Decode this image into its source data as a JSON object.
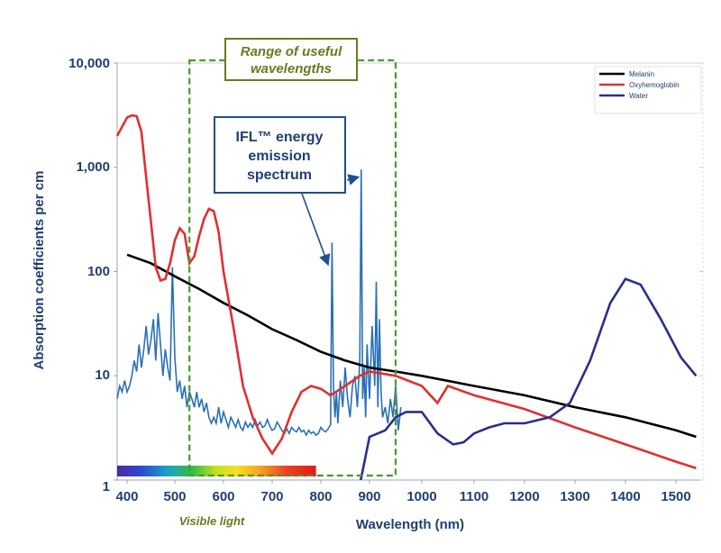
{
  "chart_data": {
    "type": "line",
    "title": "",
    "xlabel": "Wavelength (nm)",
    "ylabel": "Absorption coefficients per cm",
    "xlim": [
      380,
      1550
    ],
    "ylim": [
      1,
      10000
    ],
    "yscale": "log",
    "grid": false,
    "legend_position": "top-right",
    "x_ticks": [
      "400",
      "500",
      "600",
      "700",
      "800",
      "900",
      "1000",
      "1100",
      "1200",
      "1300",
      "1400",
      "1500"
    ],
    "y_ticks": [
      {
        "value": 1,
        "label": "1"
      },
      {
        "value": 10,
        "label": "10"
      },
      {
        "value": 100,
        "label": "100"
      },
      {
        "value": 1000,
        "label": "1,000"
      },
      {
        "value": 10000,
        "label": "10,000"
      }
    ],
    "series": [
      {
        "name": "Melanin",
        "color": "#000000",
        "x": [
          400,
          450,
          500,
          550,
          600,
          650,
          700,
          750,
          800,
          850,
          900,
          950,
          1000,
          1100,
          1200,
          1300,
          1400,
          1500,
          1540
        ],
        "y": [
          145,
          120,
          90,
          68,
          50,
          38,
          28,
          22,
          17,
          14,
          12,
          11,
          10,
          8,
          6.5,
          5,
          4,
          3,
          2.6
        ]
      },
      {
        "name": "Oxyhemoglobin",
        "color": "#e03030",
        "x": [
          380,
          400,
          410,
          420,
          430,
          440,
          450,
          460,
          470,
          480,
          490,
          500,
          510,
          520,
          530,
          540,
          550,
          560,
          570,
          580,
          590,
          600,
          620,
          640,
          660,
          680,
          700,
          720,
          740,
          760,
          780,
          800,
          820,
          850,
          880,
          900,
          950,
          1000,
          1030,
          1050,
          1100,
          1200,
          1300,
          1400,
          1500,
          1540
        ],
        "y": [
          2000,
          3000,
          3150,
          3100,
          2200,
          800,
          300,
          110,
          82,
          85,
          120,
          200,
          260,
          230,
          120,
          140,
          220,
          320,
          400,
          380,
          240,
          100,
          30,
          8,
          4,
          2.5,
          1.8,
          2.5,
          4.5,
          7,
          8,
          7.5,
          6.5,
          8,
          10,
          11,
          10,
          8,
          5.5,
          8,
          6.5,
          4.8,
          3.2,
          2.2,
          1.5,
          1.3
        ]
      },
      {
        "name": "Water",
        "color": "#2a2e8c",
        "x": [
          882,
          900,
          930,
          950,
          970,
          1000,
          1030,
          1060,
          1080,
          1100,
          1130,
          1160,
          1200,
          1250,
          1290,
          1330,
          1370,
          1400,
          1430,
          1470,
          1510,
          1540
        ],
        "y": [
          1.0,
          2.6,
          3.0,
          4.0,
          4.5,
          4.5,
          2.8,
          2.2,
          2.3,
          2.8,
          3.2,
          3.5,
          3.5,
          4.0,
          5.5,
          14,
          50,
          85,
          75,
          35,
          15,
          10
        ]
      },
      {
        "name": "IFL™ energy emission spectrum",
        "color": "#2a6fb8",
        "x": [
          380,
          385,
          390,
          395,
          400,
          405,
          410,
          415,
          420,
          425,
          430,
          435,
          440,
          445,
          450,
          455,
          460,
          465,
          470,
          475,
          480,
          485,
          490,
          495,
          500,
          505,
          510,
          515,
          520,
          525,
          530,
          535,
          540,
          545,
          550,
          555,
          560,
          565,
          570,
          575,
          580,
          585,
          590,
          595,
          600,
          605,
          610,
          615,
          620,
          625,
          630,
          635,
          640,
          645,
          650,
          655,
          660,
          665,
          670,
          675,
          680,
          685,
          690,
          695,
          700,
          705,
          710,
          715,
          720,
          725,
          730,
          735,
          740,
          745,
          750,
          755,
          760,
          765,
          770,
          775,
          780,
          785,
          790,
          795,
          800,
          805,
          810,
          815,
          820,
          823,
          826,
          829,
          832,
          835,
          840,
          845,
          850,
          855,
          860,
          865,
          870,
          875,
          880,
          883,
          886,
          889,
          892,
          895,
          900,
          905,
          910,
          913,
          916,
          919,
          922,
          925,
          930,
          935,
          940,
          945,
          950,
          955,
          960
        ],
        "y": [
          6,
          8,
          7,
          9,
          7,
          8,
          10,
          14,
          11,
          20,
          12,
          18,
          30,
          16,
          22,
          35,
          14,
          40,
          20,
          10,
          18,
          12,
          9,
          110,
          15,
          7,
          9,
          6,
          8,
          5,
          7,
          6,
          5,
          7,
          5,
          6,
          4.5,
          5.5,
          4,
          3.5,
          4,
          3.5,
          5,
          3.5,
          4.5,
          3.8,
          3.2,
          4,
          3.6,
          3.2,
          3.8,
          3.2,
          3,
          3.6,
          3.2,
          3.5,
          3.2,
          3.8,
          3.3,
          3.6,
          3.2,
          3.3,
          3.8,
          3.3,
          3,
          3.1,
          3.6,
          3.3,
          3,
          2.8,
          3.1,
          2.8,
          3.2,
          3,
          2.9,
          3.2,
          2.9,
          3,
          2.7,
          3,
          2.8,
          2.9,
          2.7,
          2.8,
          3.2,
          3,
          2.9,
          3.1,
          3.4,
          190,
          8,
          4,
          7,
          3.5,
          9,
          5,
          12,
          6,
          4,
          8,
          10,
          5,
          14,
          950,
          6,
          12,
          4,
          20,
          6,
          30,
          8,
          80,
          5,
          35,
          7,
          4,
          5,
          3.5,
          6,
          4,
          8,
          3,
          5
        ]
      }
    ],
    "annotations": {
      "range_label_line1": "Range of useful",
      "range_label_line2": "wavelengths",
      "ifl_label_line1": "IFL™ energy",
      "ifl_label_line2": "emission",
      "ifl_label_line3": "spectrum",
      "visible_light_label": "Visible light"
    },
    "range_box_nm": [
      530,
      950
    ],
    "visible_light_nm": [
      400,
      790
    ],
    "ifl_arrow_targets_nm": [
      825,
      880
    ]
  },
  "colors": {
    "axis_text": "#1f3f73",
    "range_box": "#4a9a2a",
    "range_label": "#6a7a1e",
    "ifl_box_border": "#1f4f8f"
  }
}
